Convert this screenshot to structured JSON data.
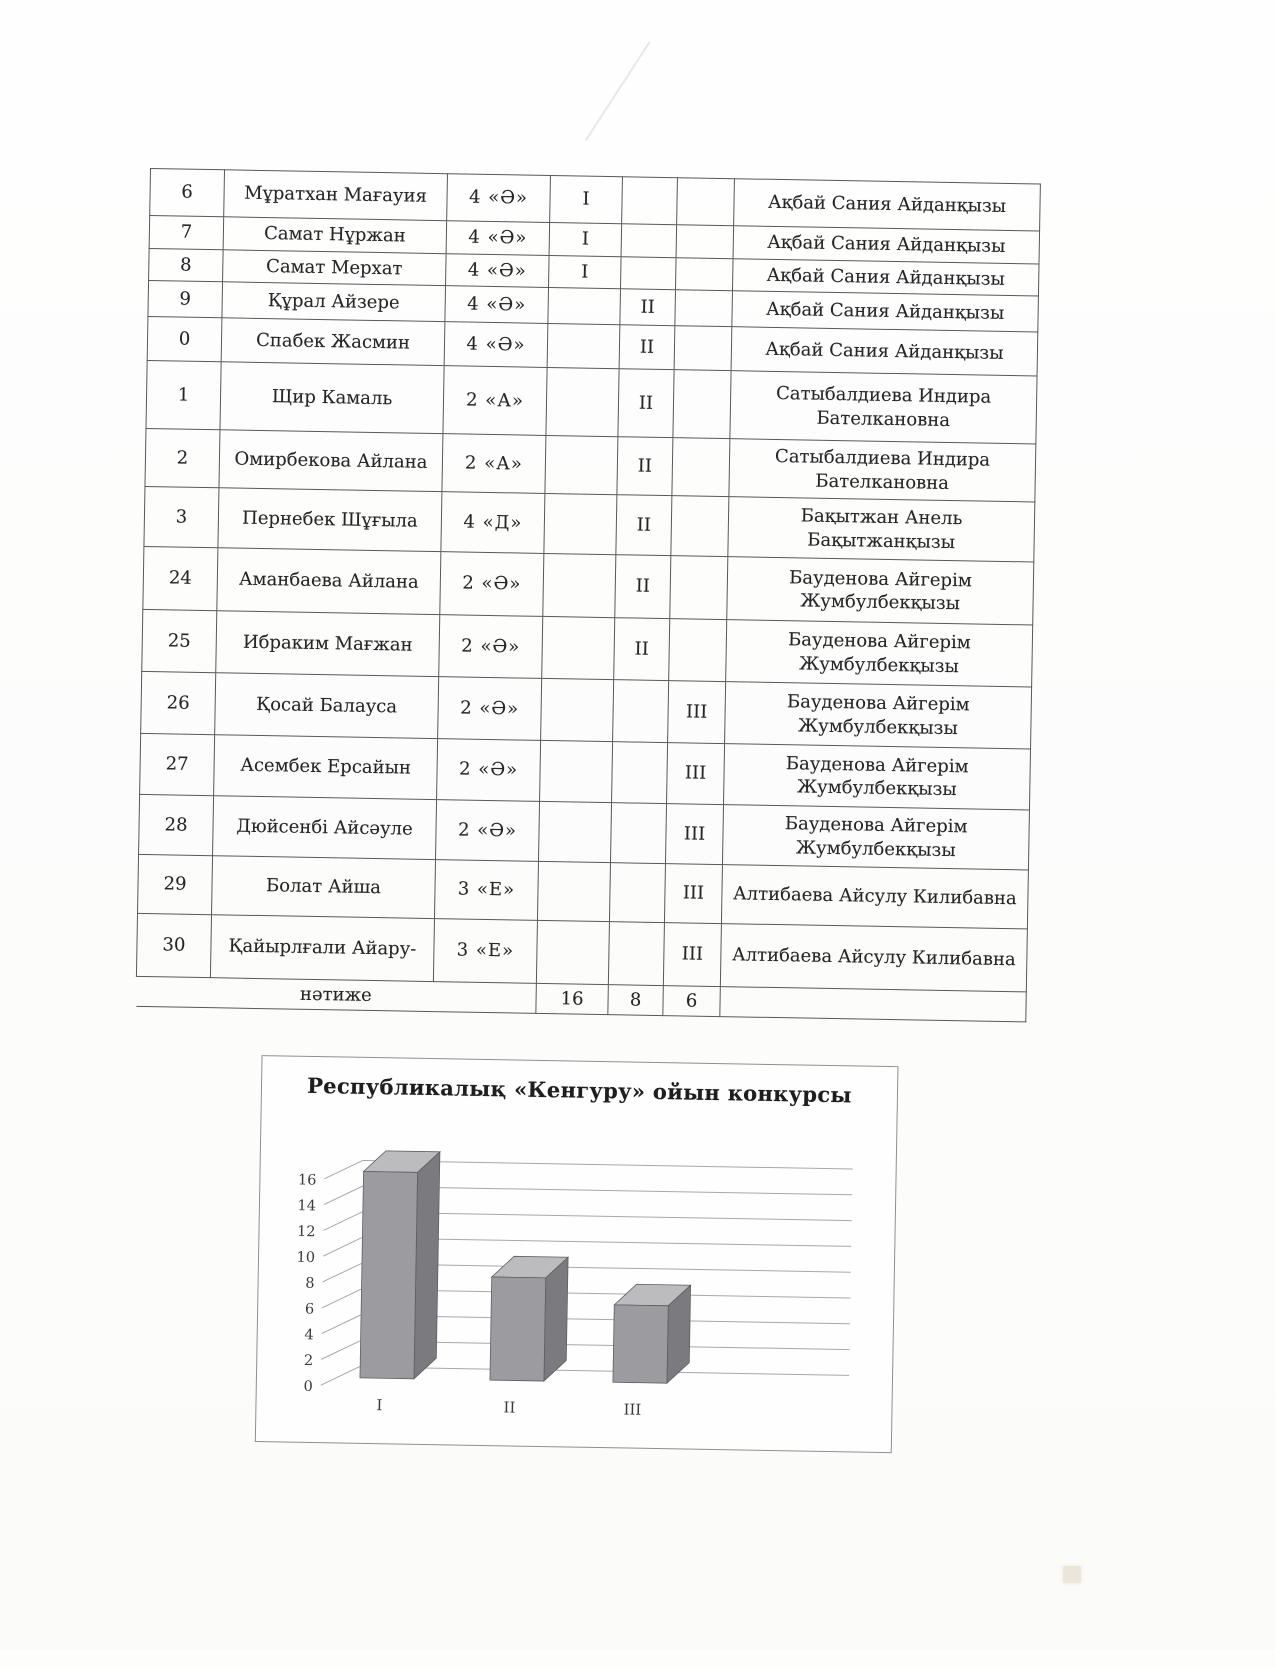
{
  "table": {
    "rows": [
      {
        "num": "6",
        "name": "Мұратхан Мағауия",
        "grade": "4 «Ә»",
        "place1": "I",
        "place2": "",
        "place3": "",
        "teacher": "Ақбай Сания Айданқызы"
      },
      {
        "num": "7",
        "name": "Самат Нұржан",
        "grade": "4 «Ә»",
        "place1": "I",
        "place2": "",
        "place3": "",
        "teacher": "Ақбай Сания Айданқызы"
      },
      {
        "num": "8",
        "name": "Самат Мерхат",
        "grade": "4 «Ә»",
        "place1": "I",
        "place2": "",
        "place3": "",
        "teacher": "Ақбай Сания Айданқызы"
      },
      {
        "num": "9",
        "name": "Құрал Айзере",
        "grade": "4 «Ә»",
        "place1": "",
        "place2": "II",
        "place3": "",
        "teacher": "Ақбай Сания Айданқызы"
      },
      {
        "num": "0",
        "name": "Спабек Жасмин",
        "grade": "4 «Ә»",
        "place1": "",
        "place2": "II",
        "place3": "",
        "teacher": "Ақбай Сания Айданқызы"
      },
      {
        "num": "1",
        "name": "Щир Камаль",
        "grade": "2 «А»",
        "place1": "",
        "place2": "II",
        "place3": "",
        "teacher": "Сатыбалдиева Индира Бателкановна"
      },
      {
        "num": "2",
        "name": "Омирбекова Айлана",
        "grade": "2 «А»",
        "place1": "",
        "place2": "II",
        "place3": "",
        "teacher": "Сатыбалдиева Индира Бателкановна"
      },
      {
        "num": "3",
        "name": "Пернебек Шұғыла",
        "grade": "4 «Д»",
        "place1": "",
        "place2": "II",
        "place3": "",
        "teacher": "Бақытжан Анель Бақытжанқызы"
      },
      {
        "num": "24",
        "name": "Аманбаева Айлана",
        "grade": "2 «Ә»",
        "place1": "",
        "place2": "II",
        "place3": "",
        "teacher": "Бауденова Айгерім Жумбулбекқызы"
      },
      {
        "num": "25",
        "name": "Ибраким Мағжан",
        "grade": "2 «Ә»",
        "place1": "",
        "place2": "II",
        "place3": "",
        "teacher": "Бауденова Айгерім Жумбулбекқызы"
      },
      {
        "num": "26",
        "name": "Қосай Балауса",
        "grade": "2 «Ә»",
        "place1": "",
        "place2": "",
        "place3": "III",
        "teacher": "Бауденова Айгерім Жумбулбекқызы"
      },
      {
        "num": "27",
        "name": "Асембек Ерсайын",
        "grade": "2 «Ә»",
        "place1": "",
        "place2": "",
        "place3": "III",
        "teacher": "Бауденова Айгерім Жумбулбекқызы"
      },
      {
        "num": "28",
        "name": "Дюйсенбі Айсәуле",
        "grade": "2 «Ә»",
        "place1": "",
        "place2": "",
        "place3": "III",
        "teacher": "Бауденова Айгерім Жумбулбекқызы"
      },
      {
        "num": "29",
        "name": "Болат Айша",
        "grade": "3 «Е»",
        "place1": "",
        "place2": "",
        "place3": "III",
        "teacher": "Алтибаева Айсулу Килибавна"
      },
      {
        "num": "30",
        "name": "Қайырлғали Айару-",
        "grade": "3 «Е»",
        "place1": "",
        "place2": "",
        "place3": "III",
        "teacher": "Алтибаева Айсулу Килибавна"
      }
    ],
    "summary": {
      "label": "нәтиже",
      "place1": "16",
      "place2": "8",
      "place3": "6"
    }
  },
  "chart_data": {
    "type": "bar",
    "style": "3d",
    "title": "Республикалық «Кенгуру» ойын конкурсы",
    "categories": [
      "I",
      "II",
      "III"
    ],
    "values": [
      16,
      8,
      6
    ],
    "xlabel": "",
    "ylabel": "",
    "ylim": [
      0,
      16
    ],
    "ytick_step": 2,
    "grid": true,
    "legend": false,
    "colors": {
      "bar_front": "#9c9ba0",
      "bar_side": "#7b7a7f",
      "bar_top": "#bcbbbe",
      "bar_stroke": "#5e5e5e",
      "grid_line": "#a8a8a8",
      "axis_text": "#3a3a3a"
    }
  }
}
